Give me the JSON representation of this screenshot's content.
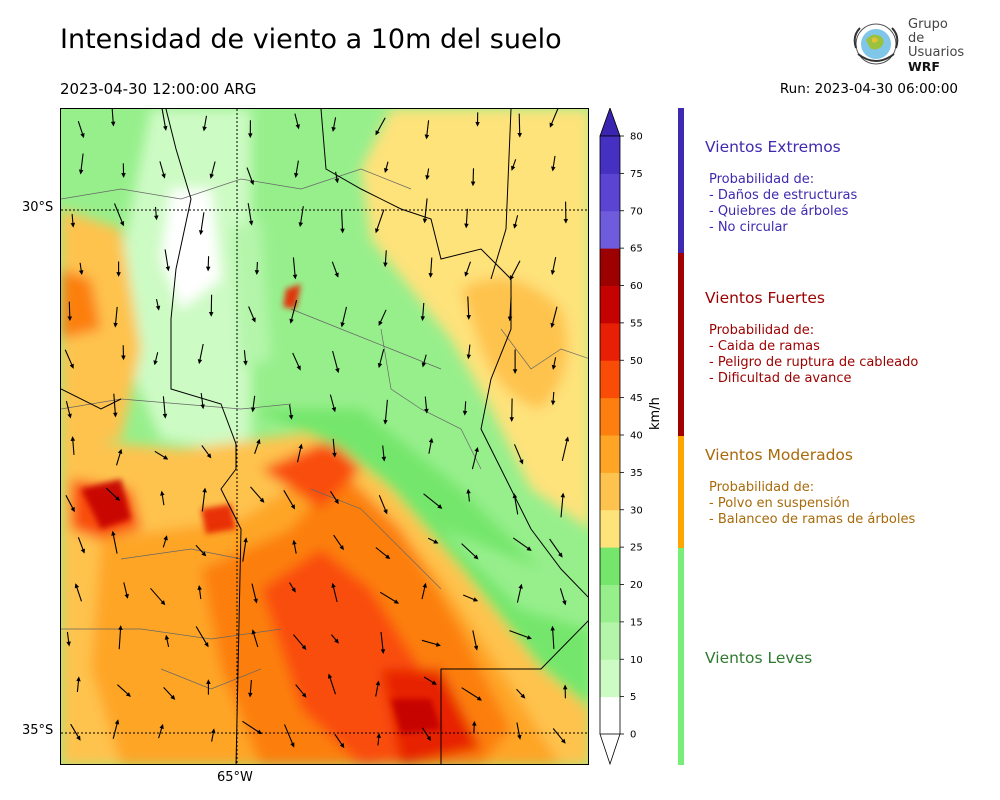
{
  "title": "Intensidad de viento a 10m del suelo",
  "valid_time": "2023-04-30 12:00:00 ARG",
  "run_time": "Run: 2023-04-30 06:00:00",
  "logo": {
    "line1": "Grupo de",
    "line2": "Usuarios",
    "line3": "WRF"
  },
  "map": {
    "lat_labels": [
      "30°S",
      "35°S"
    ],
    "lon_labels": [
      "65°W"
    ]
  },
  "colorbar": {
    "unit": "km/h",
    "ticks": [
      "0",
      "5",
      "10",
      "15",
      "20",
      "25",
      "30",
      "35",
      "40",
      "45",
      "50",
      "55",
      "60",
      "65",
      "70",
      "75",
      "80"
    ],
    "colors": [
      "#ffffff",
      "#cdfbc4",
      "#b4f5aa",
      "#97ef8c",
      "#74e66c",
      "#fee27a",
      "#fec34e",
      "#fea526",
      "#fc7f10",
      "#f94d07",
      "#e72005",
      "#c40202",
      "#9d0000",
      "#6e5cdd",
      "#5a44d1",
      "#4530c2"
    ],
    "extend_max_color": "#3a25b0"
  },
  "categories": [
    {
      "title": "Vientos Extremos",
      "color": "#3e2ab0",
      "bar_color": "#3e2ab0",
      "desc_heading": "Probabilidad de:",
      "items": [
        "- Daños de estructuras",
        "- Quiebres de árboles",
        "- No circular"
      ]
    },
    {
      "title": "Vientos Fuertes",
      "color": "#9b0000",
      "bar_color": "#a00000",
      "desc_heading": "Probabilidad de:",
      "items": [
        "- Caida de ramas",
        "- Peligro de ruptura de cableado",
        "- Dificultad de avance"
      ]
    },
    {
      "title": "Vientos Moderados",
      "color": "#a86a0a",
      "bar_color": "#ffa500",
      "desc_heading": "Probabilidad de:",
      "items": [
        "- Polvo en suspensión",
        "- Balanceo de ramas de árboles"
      ]
    },
    {
      "title": "Vientos Leves",
      "color": "#2f7a2f",
      "bar_color": "#77ee77",
      "desc_heading": "",
      "items": []
    }
  ]
}
